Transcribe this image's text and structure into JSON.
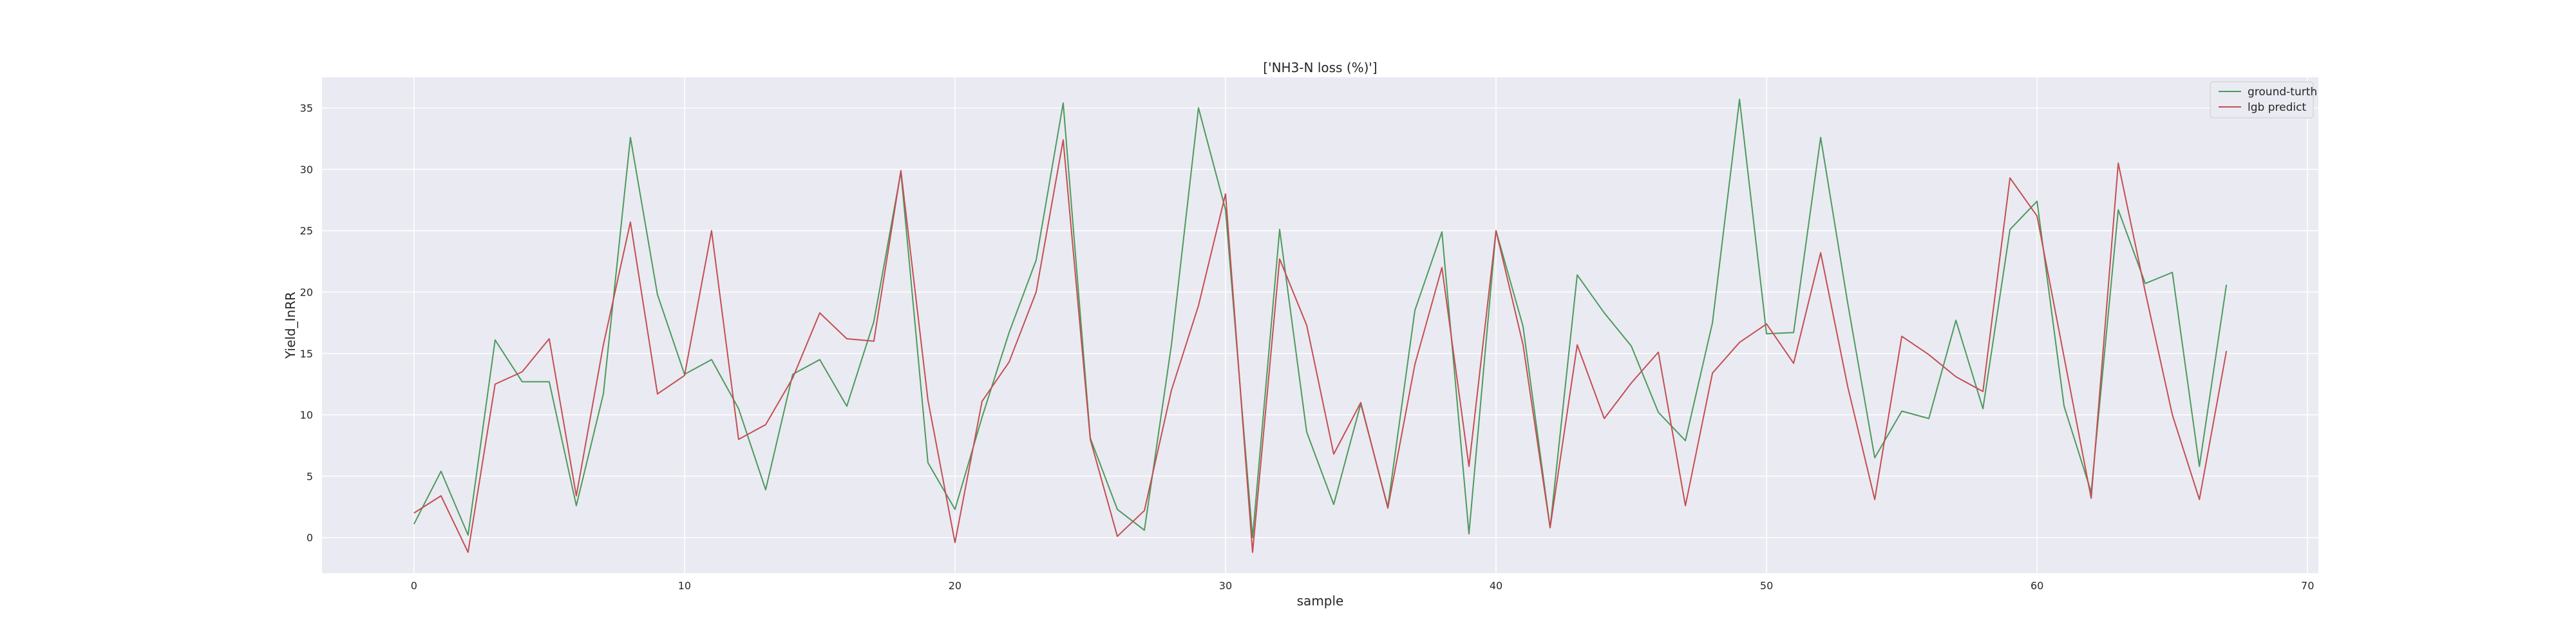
{
  "chart_data": {
    "type": "line",
    "title": "['NH3-N loss (%)']",
    "xlabel": "sample",
    "ylabel": "Yield_InRR",
    "xlim": [
      -3.4,
      70.4
    ],
    "ylim": [
      -2.9,
      37.5
    ],
    "xticks": [
      0,
      10,
      20,
      30,
      40,
      50,
      60,
      70
    ],
    "yticks": [
      0,
      5,
      10,
      15,
      20,
      25,
      30,
      35
    ],
    "grid": true,
    "legend_position": "top-right",
    "x": [
      0,
      1,
      2,
      3,
      4,
      5,
      6,
      7,
      8,
      9,
      10,
      11,
      12,
      13,
      14,
      15,
      16,
      17,
      18,
      19,
      20,
      21,
      22,
      23,
      24,
      25,
      26,
      27,
      28,
      29,
      30,
      31,
      32,
      33,
      34,
      35,
      36,
      37,
      38,
      39,
      40,
      41,
      42,
      43,
      44,
      45,
      46,
      47,
      48,
      49,
      50,
      51,
      52,
      53,
      54,
      55,
      56,
      57,
      58,
      59,
      60,
      61,
      62,
      63,
      64,
      65,
      66,
      67
    ],
    "series": [
      {
        "name": "ground-turth",
        "color": "#4c9a5c",
        "values": [
          1.1,
          5.4,
          0.2,
          16.1,
          12.7,
          12.7,
          2.6,
          11.7,
          32.6,
          19.8,
          13.3,
          14.5,
          10.5,
          3.9,
          13.3,
          14.5,
          10.7,
          17.6,
          29.8,
          6.1,
          2.3,
          9.8,
          16.7,
          22.6,
          35.4,
          8.1,
          2.3,
          0.6,
          15.7,
          35.0,
          26.7,
          0.0,
          25.1,
          8.6,
          2.7,
          10.9,
          2.5,
          18.5,
          24.9,
          0.3,
          25.0,
          17.2,
          0.8,
          21.4,
          18.3,
          15.6,
          10.2,
          7.9,
          17.5,
          35.7,
          16.6,
          16.7,
          32.6,
          19.1,
          6.5,
          10.3,
          9.7,
          17.7,
          10.5,
          25.1,
          27.4,
          10.7,
          3.7,
          26.7,
          20.7,
          21.6,
          5.8,
          20.6
        ]
      },
      {
        "name": "lgb predict",
        "color": "#c44e52",
        "values": [
          2.0,
          3.4,
          -1.2,
          12.5,
          13.5,
          16.2,
          3.4,
          15.7,
          25.7,
          11.7,
          13.2,
          25.0,
          8.0,
          9.2,
          13.0,
          18.3,
          16.2,
          16.0,
          29.9,
          11.2,
          -0.4,
          11.1,
          14.3,
          20.0,
          32.4,
          8.0,
          0.1,
          2.2,
          12.0,
          18.9,
          28.0,
          -1.2,
          22.7,
          17.3,
          6.8,
          11.0,
          2.4,
          14.1,
          22.0,
          5.8,
          25.0,
          15.7,
          0.8,
          15.7,
          9.7,
          12.6,
          15.1,
          2.6,
          13.4,
          15.9,
          17.4,
          14.2,
          23.2,
          12.3,
          3.1,
          16.4,
          14.9,
          13.1,
          11.9,
          29.3,
          26.2,
          14.7,
          3.2,
          30.5,
          20.0,
          10.0,
          3.1,
          15.2
        ]
      }
    ]
  }
}
